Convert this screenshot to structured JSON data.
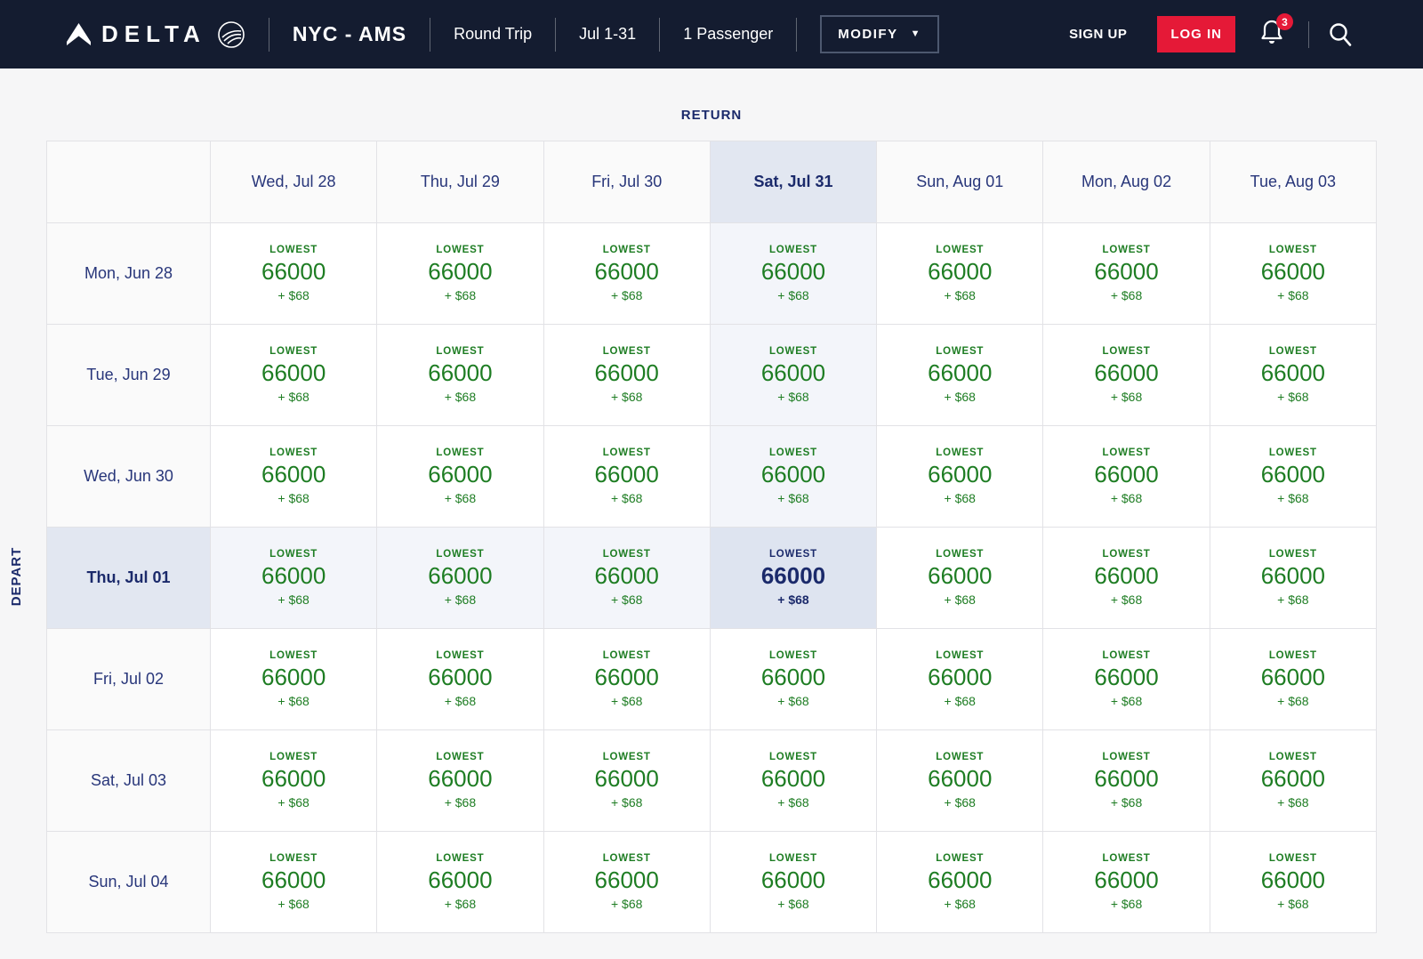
{
  "topbar": {
    "brand": "DELTA",
    "route": "NYC - AMS",
    "trip_type": "Round Trip",
    "date_range": "Jul 1-31",
    "passengers": "1 Passenger",
    "modify_label": "MODIFY",
    "sign_up_label": "SIGN UP",
    "log_in_label": "LOG IN",
    "notification_count": "3",
    "icons": [
      "delta-widget-icon",
      "skyteam-icon",
      "caret-down-icon",
      "bell-icon",
      "search-icon"
    ]
  },
  "calendar": {
    "return_label": "RETURN",
    "depart_label": "DEPART",
    "return_dates": [
      "Wed, Jul 28",
      "Thu, Jul 29",
      "Fri, Jul 30",
      "Sat, Jul 31",
      "Sun, Aug 01",
      "Mon, Aug 02",
      "Tue, Aug 03"
    ],
    "depart_dates": [
      "Mon, Jun 28",
      "Tue, Jun 29",
      "Wed, Jun 30",
      "Thu, Jul 01",
      "Fri, Jul 02",
      "Sat, Jul 03",
      "Sun, Jul 04"
    ],
    "selected_return_index": 3,
    "selected_depart_index": 3,
    "grid": [
      [
        {
          "lowest": "LOWEST",
          "miles": "66000",
          "fees": "+ $68"
        },
        {
          "lowest": "LOWEST",
          "miles": "66000",
          "fees": "+ $68"
        },
        {
          "lowest": "LOWEST",
          "miles": "66000",
          "fees": "+ $68"
        },
        {
          "lowest": "LOWEST",
          "miles": "66000",
          "fees": "+ $68"
        },
        {
          "lowest": "LOWEST",
          "miles": "66000",
          "fees": "+ $68"
        },
        {
          "lowest": "LOWEST",
          "miles": "66000",
          "fees": "+ $68"
        },
        {
          "lowest": "LOWEST",
          "miles": "66000",
          "fees": "+ $68"
        }
      ],
      [
        {
          "lowest": "LOWEST",
          "miles": "66000",
          "fees": "+ $68"
        },
        {
          "lowest": "LOWEST",
          "miles": "66000",
          "fees": "+ $68"
        },
        {
          "lowest": "LOWEST",
          "miles": "66000",
          "fees": "+ $68"
        },
        {
          "lowest": "LOWEST",
          "miles": "66000",
          "fees": "+ $68"
        },
        {
          "lowest": "LOWEST",
          "miles": "66000",
          "fees": "+ $68"
        },
        {
          "lowest": "LOWEST",
          "miles": "66000",
          "fees": "+ $68"
        },
        {
          "lowest": "LOWEST",
          "miles": "66000",
          "fees": "+ $68"
        }
      ],
      [
        {
          "lowest": "LOWEST",
          "miles": "66000",
          "fees": "+ $68"
        },
        {
          "lowest": "LOWEST",
          "miles": "66000",
          "fees": "+ $68"
        },
        {
          "lowest": "LOWEST",
          "miles": "66000",
          "fees": "+ $68"
        },
        {
          "lowest": "LOWEST",
          "miles": "66000",
          "fees": "+ $68"
        },
        {
          "lowest": "LOWEST",
          "miles": "66000",
          "fees": "+ $68"
        },
        {
          "lowest": "LOWEST",
          "miles": "66000",
          "fees": "+ $68"
        },
        {
          "lowest": "LOWEST",
          "miles": "66000",
          "fees": "+ $68"
        }
      ],
      [
        {
          "lowest": "LOWEST",
          "miles": "66000",
          "fees": "+ $68"
        },
        {
          "lowest": "LOWEST",
          "miles": "66000",
          "fees": "+ $68"
        },
        {
          "lowest": "LOWEST",
          "miles": "66000",
          "fees": "+ $68"
        },
        {
          "lowest": "LOWEST",
          "miles": "66000",
          "fees": "+ $68"
        },
        {
          "lowest": "LOWEST",
          "miles": "66000",
          "fees": "+ $68"
        },
        {
          "lowest": "LOWEST",
          "miles": "66000",
          "fees": "+ $68"
        },
        {
          "lowest": "LOWEST",
          "miles": "66000",
          "fees": "+ $68"
        }
      ],
      [
        {
          "lowest": "LOWEST",
          "miles": "66000",
          "fees": "+ $68"
        },
        {
          "lowest": "LOWEST",
          "miles": "66000",
          "fees": "+ $68"
        },
        {
          "lowest": "LOWEST",
          "miles": "66000",
          "fees": "+ $68"
        },
        {
          "lowest": "LOWEST",
          "miles": "66000",
          "fees": "+ $68"
        },
        {
          "lowest": "LOWEST",
          "miles": "66000",
          "fees": "+ $68"
        },
        {
          "lowest": "LOWEST",
          "miles": "66000",
          "fees": "+ $68"
        },
        {
          "lowest": "LOWEST",
          "miles": "66000",
          "fees": "+ $68"
        }
      ],
      [
        {
          "lowest": "LOWEST",
          "miles": "66000",
          "fees": "+ $68"
        },
        {
          "lowest": "LOWEST",
          "miles": "66000",
          "fees": "+ $68"
        },
        {
          "lowest": "LOWEST",
          "miles": "66000",
          "fees": "+ $68"
        },
        {
          "lowest": "LOWEST",
          "miles": "66000",
          "fees": "+ $68"
        },
        {
          "lowest": "LOWEST",
          "miles": "66000",
          "fees": "+ $68"
        },
        {
          "lowest": "LOWEST",
          "miles": "66000",
          "fees": "+ $68"
        },
        {
          "lowest": "LOWEST",
          "miles": "66000",
          "fees": "+ $68"
        }
      ],
      [
        {
          "lowest": "LOWEST",
          "miles": "66000",
          "fees": "+ $68"
        },
        {
          "lowest": "LOWEST",
          "miles": "66000",
          "fees": "+ $68"
        },
        {
          "lowest": "LOWEST",
          "miles": "66000",
          "fees": "+ $68"
        },
        {
          "lowest": "LOWEST",
          "miles": "66000",
          "fees": "+ $68"
        },
        {
          "lowest": "LOWEST",
          "miles": "66000",
          "fees": "+ $68"
        },
        {
          "lowest": "LOWEST",
          "miles": "66000",
          "fees": "+ $68"
        },
        {
          "lowest": "LOWEST",
          "miles": "66000",
          "fees": "+ $68"
        }
      ]
    ]
  },
  "colors": {
    "header_bg": "#141c30",
    "page_bg": "#f6f6f7",
    "navy_text": "#1b2a6b",
    "price_green": "#1e7d23",
    "brand_red": "#e51937",
    "selected_cell_bg": "#dee4f0",
    "selected_header_bg": "#e2e7f1",
    "path_tint_bg": "#f3f5fa"
  }
}
